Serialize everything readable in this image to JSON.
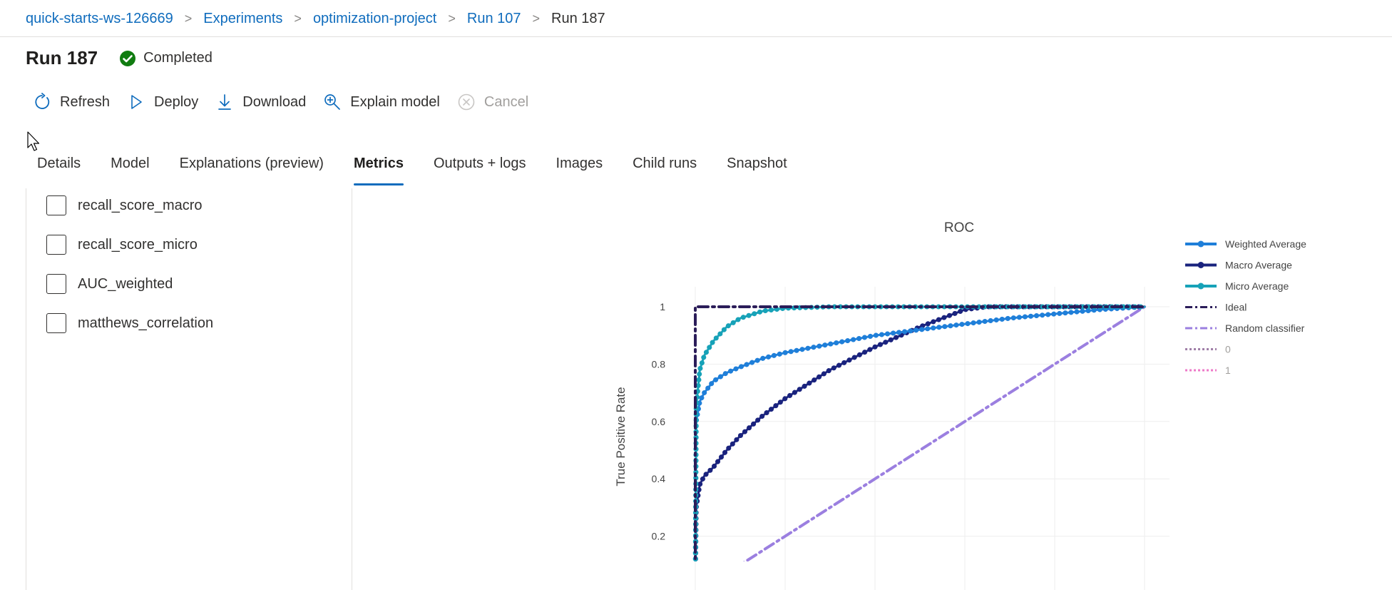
{
  "breadcrumb": {
    "items": [
      "quick-starts-ws-126669",
      "Experiments",
      "optimization-project",
      "Run 107",
      "Run 187"
    ]
  },
  "header": {
    "title": "Run 187",
    "status": "Completed",
    "status_color": "#107c10"
  },
  "toolbar": {
    "refresh": "Refresh",
    "deploy": "Deploy",
    "download": "Download",
    "explain": "Explain model",
    "cancel": "Cancel"
  },
  "tabs": [
    "Details",
    "Model",
    "Explanations (preview)",
    "Metrics",
    "Outputs + logs",
    "Images",
    "Child runs",
    "Snapshot"
  ],
  "active_tab": "Metrics",
  "metrics": {
    "items": [
      {
        "label": "recall_score_macro",
        "checked": false
      },
      {
        "label": "recall_score_micro",
        "checked": false
      },
      {
        "label": "AUC_weighted",
        "checked": false
      },
      {
        "label": "matthews_correlation",
        "checked": false
      }
    ]
  },
  "chart_data": {
    "type": "line",
    "title": "ROC",
    "xlabel": "",
    "ylabel": "True Positive Rate",
    "xlim": [
      0,
      1
    ],
    "ylim": [
      0,
      1.07
    ],
    "yticks": [
      "0.2",
      "0.4",
      "0.6",
      "0.8",
      "1"
    ],
    "grid": true,
    "legend_position": "right",
    "series": [
      {
        "name": "Weighted Average",
        "color": "#1f7fd9",
        "style": "solid-markers",
        "x": [
          0,
          0.002,
          0.01,
          0.02,
          0.04,
          0.07,
          0.1,
          0.15,
          0.2,
          0.3,
          0.4,
          0.5,
          0.6,
          0.7,
          0.8,
          0.9,
          1.0
        ],
        "y": [
          0,
          0.6,
          0.67,
          0.7,
          0.74,
          0.77,
          0.79,
          0.82,
          0.84,
          0.87,
          0.9,
          0.92,
          0.94,
          0.96,
          0.975,
          0.99,
          1.0
        ]
      },
      {
        "name": "Macro Average",
        "color": "#1a237e",
        "style": "solid-markers",
        "x": [
          0,
          0.002,
          0.01,
          0.02,
          0.04,
          0.07,
          0.1,
          0.15,
          0.2,
          0.3,
          0.4,
          0.5,
          0.55,
          0.6,
          0.65,
          0.7,
          0.8,
          1.0
        ],
        "y": [
          0,
          0.3,
          0.38,
          0.41,
          0.44,
          0.5,
          0.55,
          0.62,
          0.68,
          0.78,
          0.86,
          0.93,
          0.96,
          0.99,
          1.0,
          1.0,
          1.0,
          1.0
        ]
      },
      {
        "name": "Micro Average",
        "color": "#17a2b8",
        "style": "solid-markers",
        "x": [
          0,
          0.002,
          0.01,
          0.02,
          0.04,
          0.07,
          0.1,
          0.15,
          0.2,
          0.3,
          0.4,
          1.0
        ],
        "y": [
          0,
          0.65,
          0.78,
          0.83,
          0.88,
          0.93,
          0.96,
          0.985,
          0.995,
          1.0,
          1.0,
          1.0
        ]
      },
      {
        "name": "Ideal",
        "color": "#2b1d59",
        "style": "dash-dot",
        "x": [
          0,
          0,
          1
        ],
        "y": [
          0,
          1,
          1
        ]
      },
      {
        "name": "Random classifier",
        "color": "#9b7fe0",
        "style": "dash-dot",
        "x": [
          0,
          1
        ],
        "y": [
          0,
          1
        ]
      },
      {
        "name": "0",
        "color": "#a07fa8",
        "style": "dotted",
        "x": [],
        "y": []
      },
      {
        "name": "1",
        "color": "#ee7bc8",
        "style": "dotted",
        "x": [],
        "y": []
      }
    ]
  }
}
